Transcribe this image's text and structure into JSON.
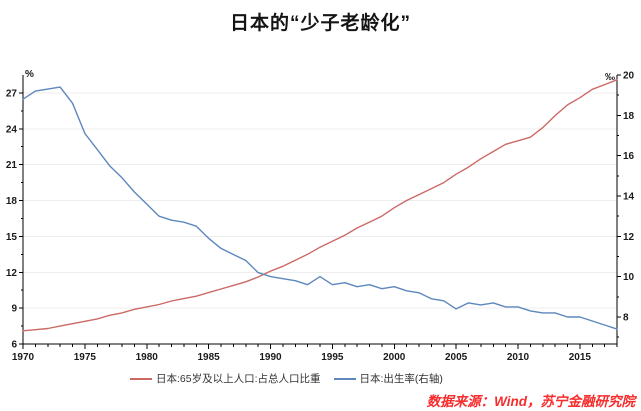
{
  "title": "日本的“少子老龄化”",
  "source_note": "数据来源：Wind，苏宁金融研究院",
  "colors": {
    "series_65plus": "#cb6a65",
    "series_birthrate": "#5d87bd",
    "grid": "#ededed",
    "axis": "#000000",
    "tick_label": "#1a1a1a",
    "source_text": "#f72c2c",
    "background": "#ffffff"
  },
  "chart_data": {
    "type": "line",
    "title": "日本的“少子老龄化”",
    "grid": "horizontal",
    "legend_position": "bottom",
    "x": [
      1970,
      1971,
      1972,
      1973,
      1974,
      1975,
      1976,
      1977,
      1978,
      1979,
      1980,
      1981,
      1982,
      1983,
      1984,
      1985,
      1986,
      1987,
      1988,
      1989,
      1990,
      1991,
      1992,
      1993,
      1994,
      1995,
      1996,
      1997,
      1998,
      1999,
      2000,
      2001,
      2002,
      2003,
      2004,
      2005,
      2006,
      2007,
      2008,
      2009,
      2010,
      2011,
      2012,
      2013,
      2014,
      2015,
      2016,
      2017,
      2018
    ],
    "series": [
      {
        "name": "日本:65岁及以上人口:占总人口比重",
        "axis": "left",
        "color": "#cb6a65",
        "values": [
          7.1,
          7.2,
          7.3,
          7.5,
          7.7,
          7.9,
          8.1,
          8.4,
          8.6,
          8.9,
          9.1,
          9.3,
          9.6,
          9.8,
          10.0,
          10.3,
          10.6,
          10.9,
          11.2,
          11.6,
          12.1,
          12.5,
          13.0,
          13.5,
          14.1,
          14.6,
          15.1,
          15.7,
          16.2,
          16.7,
          17.4,
          18.0,
          18.5,
          19.0,
          19.5,
          20.2,
          20.8,
          21.5,
          22.1,
          22.7,
          23.0,
          23.3,
          24.1,
          25.1,
          26.0,
          26.6,
          27.3,
          27.7,
          28.1
        ]
      },
      {
        "name": "日本:出生率(右轴)",
        "axis": "right",
        "color": "#5d87bd",
        "values": [
          18.8,
          19.2,
          19.3,
          19.4,
          18.6,
          17.1,
          16.3,
          15.5,
          14.9,
          14.2,
          13.6,
          13.0,
          12.8,
          12.7,
          12.5,
          11.9,
          11.4,
          11.1,
          10.8,
          10.2,
          10.0,
          9.9,
          9.8,
          9.6,
          10.0,
          9.6,
          9.7,
          9.5,
          9.6,
          9.4,
          9.5,
          9.3,
          9.2,
          8.9,
          8.8,
          8.4,
          8.7,
          8.6,
          8.7,
          8.5,
          8.5,
          8.3,
          8.2,
          8.2,
          8.0,
          8.0,
          7.8,
          7.6,
          7.4
        ]
      }
    ],
    "left_axis": {
      "unit": "%",
      "min": 6,
      "max": 28.5,
      "ticks": [
        6,
        9,
        12,
        15,
        18,
        21,
        24,
        27
      ],
      "minor_step": 1.5
    },
    "right_axis": {
      "unit": "‰",
      "min": 6.66,
      "max": 20,
      "ticks": [
        8,
        10,
        12,
        14,
        16,
        18,
        20
      ],
      "minor_ticks": [
        7,
        9,
        11,
        13,
        15,
        17,
        19
      ]
    },
    "x_axis": {
      "min": 1970,
      "max": 2018,
      "tick_years": [
        1970,
        1975,
        1980,
        1985,
        1990,
        1995,
        2000,
        2005,
        2010,
        2015
      ],
      "minor_tick_every": 1
    }
  }
}
